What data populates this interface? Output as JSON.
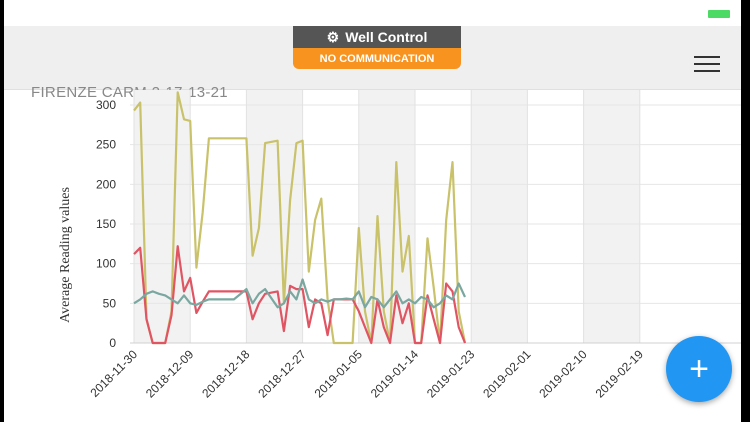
{
  "header": {
    "title": "Well Control",
    "status": "NO COMMUNICATION",
    "well_name": "FIRENZE CARM 2-17-13-21"
  },
  "fab": {
    "label": "+"
  },
  "chart_data": {
    "type": "line",
    "ylabel": "Average Reading values",
    "xlabel": "",
    "ylim": [
      0,
      300
    ],
    "yticks": [
      0,
      50,
      100,
      150,
      200,
      250,
      300
    ],
    "xlim": [
      "2018-11-29",
      "2019-02-26"
    ],
    "xticks": [
      "2018-11-30",
      "2018-12-09",
      "2018-12-18",
      "2018-12-27",
      "2019-01-05",
      "2019-01-14",
      "2019-01-23",
      "2019-02-01",
      "2019-02-10",
      "2019-02-19"
    ],
    "grid": true,
    "legend": "none",
    "series": [
      {
        "color": "#c9c26a",
        "x": [
          "2018-11-30",
          "2018-12-01",
          "2018-12-02",
          "2018-12-03",
          "2018-12-04",
          "2018-12-05",
          "2018-12-06",
          "2018-12-07",
          "2018-12-08",
          "2018-12-09",
          "2018-12-10",
          "2018-12-11",
          "2018-12-12",
          "2018-12-14",
          "2018-12-16",
          "2018-12-18",
          "2018-12-19",
          "2018-12-20",
          "2018-12-21",
          "2018-12-23",
          "2018-12-24",
          "2018-12-25",
          "2018-12-26",
          "2018-12-27",
          "2018-12-28",
          "2018-12-29",
          "2018-12-30",
          "2018-12-31",
          "2019-01-01",
          "2019-01-02",
          "2019-01-03",
          "2019-01-04",
          "2019-01-05",
          "2019-01-06",
          "2019-01-07",
          "2019-01-08",
          "2019-01-09",
          "2019-01-10",
          "2019-01-11",
          "2019-01-12",
          "2019-01-13",
          "2019-01-14",
          "2019-01-15",
          "2019-01-16",
          "2019-01-17",
          "2019-01-18",
          "2019-01-19",
          "2019-01-20",
          "2019-01-21",
          "2019-01-22"
        ],
        "values": [
          293,
          303,
          30,
          0,
          0,
          0,
          40,
          316,
          282,
          280,
          95,
          165,
          258,
          258,
          258,
          258,
          110,
          145,
          252,
          255,
          50,
          180,
          252,
          255,
          90,
          155,
          182,
          55,
          0,
          0,
          0,
          0,
          145,
          40,
          0,
          160,
          40,
          0,
          228,
          90,
          135,
          0,
          0,
          132,
          70,
          0,
          155,
          228,
          40,
          0
        ]
      },
      {
        "color": "#e05563",
        "x": [
          "2018-11-30",
          "2018-12-01",
          "2018-12-02",
          "2018-12-03",
          "2018-12-04",
          "2018-12-05",
          "2018-12-06",
          "2018-12-07",
          "2018-12-08",
          "2018-12-09",
          "2018-12-10",
          "2018-12-11",
          "2018-12-12",
          "2018-12-14",
          "2018-12-16",
          "2018-12-18",
          "2018-12-19",
          "2018-12-20",
          "2018-12-21",
          "2018-12-23",
          "2018-12-24",
          "2018-12-25",
          "2018-12-26",
          "2018-12-27",
          "2018-12-28",
          "2018-12-29",
          "2018-12-30",
          "2018-12-31",
          "2019-01-01",
          "2019-01-02",
          "2019-01-03",
          "2019-01-04",
          "2019-01-05",
          "2019-01-06",
          "2019-01-07",
          "2019-01-08",
          "2019-01-09",
          "2019-01-10",
          "2019-01-11",
          "2019-01-12",
          "2019-01-13",
          "2019-01-14",
          "2019-01-15",
          "2019-01-16",
          "2019-01-17",
          "2019-01-18",
          "2019-01-19",
          "2019-01-20",
          "2019-01-21",
          "2019-01-22"
        ],
        "values": [
          112,
          120,
          30,
          0,
          0,
          0,
          35,
          122,
          65,
          82,
          38,
          52,
          65,
          65,
          65,
          65,
          30,
          50,
          62,
          65,
          15,
          72,
          68,
          68,
          20,
          55,
          50,
          10,
          55,
          55,
          55,
          55,
          40,
          20,
          0,
          55,
          20,
          0,
          60,
          25,
          50,
          0,
          0,
          60,
          30,
          0,
          75,
          65,
          20,
          0
        ]
      },
      {
        "color": "#7aa7a0",
        "x": [
          "2018-11-30",
          "2018-12-01",
          "2018-12-02",
          "2018-12-03",
          "2018-12-04",
          "2018-12-05",
          "2018-12-06",
          "2018-12-07",
          "2018-12-08",
          "2018-12-09",
          "2018-12-10",
          "2018-12-11",
          "2018-12-12",
          "2018-12-14",
          "2018-12-16",
          "2018-12-18",
          "2018-12-19",
          "2018-12-20",
          "2018-12-21",
          "2018-12-23",
          "2018-12-24",
          "2018-12-25",
          "2018-12-26",
          "2018-12-27",
          "2018-12-28",
          "2018-12-29",
          "2018-12-30",
          "2018-12-31",
          "2019-01-01",
          "2019-01-02",
          "2019-01-03",
          "2019-01-04",
          "2019-01-05",
          "2019-01-06",
          "2019-01-07",
          "2019-01-08",
          "2019-01-09",
          "2019-01-10",
          "2019-01-11",
          "2019-01-12",
          "2019-01-13",
          "2019-01-14",
          "2019-01-15",
          "2019-01-16",
          "2019-01-17",
          "2019-01-18",
          "2019-01-19",
          "2019-01-20",
          "2019-01-21",
          "2019-01-22"
        ],
        "values": [
          50,
          55,
          62,
          65,
          62,
          60,
          55,
          50,
          60,
          50,
          48,
          52,
          55,
          55,
          55,
          68,
          50,
          62,
          68,
          45,
          50,
          65,
          55,
          80,
          55,
          50,
          55,
          52,
          55,
          55,
          56,
          55,
          65,
          45,
          58,
          55,
          45,
          55,
          65,
          50,
          55,
          50,
          58,
          55,
          45,
          50,
          60,
          55,
          75,
          58
        ]
      }
    ]
  }
}
